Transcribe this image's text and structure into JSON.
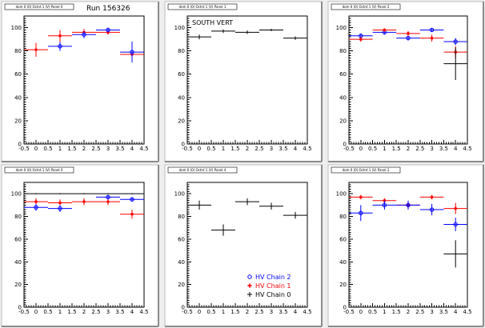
{
  "run_label": "Run 156326",
  "colors": {
    "chain2": "#0000ff",
    "chain1": "#ff0000",
    "chain0": "#000000"
  },
  "chart_data": [
    {
      "type": "scatter",
      "title": "dom 0 (0) Octnt 1 (V) Panel 0",
      "xlim": [
        -0.5,
        4.5
      ],
      "ylim": [
        0,
        110
      ],
      "xticks": [
        "-0.5",
        "0",
        "0.5",
        "1",
        "1.5",
        "2",
        "2.5",
        "3",
        "3.5",
        "4",
        "4.5"
      ],
      "yticks": [
        0,
        20,
        40,
        60,
        80,
        100
      ],
      "annotation": "",
      "series": [
        {
          "key": "chain1",
          "points": [
            {
              "x": 0,
              "y": 81,
              "ey": 6
            },
            {
              "x": 1,
              "y": 93,
              "ey": 5
            },
            {
              "x": 2,
              "y": 96,
              "ey": 3
            },
            {
              "x": 3,
              "y": 96,
              "ey": 2
            },
            {
              "x": 4,
              "y": 77,
              "ey": 5
            }
          ]
        },
        {
          "key": "chain2",
          "points": [
            {
              "x": 1,
              "y": 84,
              "ey": 4
            },
            {
              "x": 2,
              "y": 94,
              "ey": 3
            },
            {
              "x": 3,
              "y": 98,
              "ey": 2
            },
            {
              "x": 4,
              "y": 79,
              "ey": 9
            }
          ]
        }
      ]
    },
    {
      "type": "scatter",
      "title": "dom 0 (0) Octnt 1 (V) Panel 1",
      "xlim": [
        -0.5,
        4.5
      ],
      "ylim": [
        0,
        110
      ],
      "xticks": [
        "-0.5",
        "0",
        "0.5",
        "1",
        "1.5",
        "2",
        "2.5",
        "3",
        "3.5",
        "4",
        "4.5"
      ],
      "yticks": [
        0,
        20,
        40,
        60,
        80,
        100
      ],
      "annotation": "SOUTH VERT",
      "series": [
        {
          "key": "chain0",
          "points": [
            {
              "x": 0,
              "y": 92,
              "ey": 2
            },
            {
              "x": 1,
              "y": 97,
              "ey": 1.5
            },
            {
              "x": 2,
              "y": 96,
              "ey": 1.5
            },
            {
              "x": 3,
              "y": 98,
              "ey": 1
            },
            {
              "x": 4,
              "y": 91,
              "ey": 1.5
            }
          ]
        }
      ]
    },
    {
      "type": "scatter",
      "title": "dom 0 (0) Octnt 1 (V) Panel 2",
      "xlim": [
        -0.5,
        4.5
      ],
      "ylim": [
        0,
        110
      ],
      "xticks": [
        "-0.5",
        "0",
        "0.5",
        "1",
        "1.5",
        "2",
        "2.5",
        "3",
        "3.5",
        "4",
        "4.5"
      ],
      "yticks": [
        0,
        20,
        40,
        60,
        80,
        100
      ],
      "annotation": "",
      "series": [
        {
          "key": "chain2",
          "points": [
            {
              "x": 0,
              "y": 93,
              "ey": 2
            },
            {
              "x": 1,
              "y": 96,
              "ey": 2
            },
            {
              "x": 2,
              "y": 91,
              "ey": 2
            },
            {
              "x": 3,
              "y": 98,
              "ey": 1.5
            },
            {
              "x": 4,
              "y": 88,
              "ey": 3
            }
          ]
        },
        {
          "key": "chain1",
          "points": [
            {
              "x": 0,
              "y": 90,
              "ey": 2
            },
            {
              "x": 1,
              "y": 98,
              "ey": 1.5
            },
            {
              "x": 2,
              "y": 95,
              "ey": 2
            },
            {
              "x": 3,
              "y": 91,
              "ey": 3
            },
            {
              "x": 4,
              "y": 79,
              "ey": 5
            }
          ]
        },
        {
          "key": "chain0",
          "points": [
            {
              "x": 4,
              "y": 69,
              "ey": 14
            }
          ]
        }
      ]
    },
    {
      "type": "scatter",
      "title": "dom 0 (0) Octnt 1 (V) Panel 0",
      "xlim": [
        -0.5,
        4.5
      ],
      "ylim": [
        0,
        110
      ],
      "xticks": [
        "-0.5",
        "0",
        "0.5",
        "1",
        "1.5",
        "2",
        "2.5",
        "3",
        "3.5",
        "4",
        "4.5"
      ],
      "yticks": [
        0,
        20,
        40,
        60,
        80,
        100
      ],
      "annotation": "",
      "series": [
        {
          "key": "chain0",
          "points": [
            {
              "x": 0,
              "y": 100,
              "ey": 0.5
            },
            {
              "x": 1,
              "y": 100,
              "ey": 0.5
            },
            {
              "x": 2,
              "y": 100,
              "ey": 0.5
            },
            {
              "x": 3,
              "y": 100,
              "ey": 0.5
            },
            {
              "x": 4,
              "y": 100,
              "ey": 0.5
            }
          ]
        },
        {
          "key": "chain1",
          "points": [
            {
              "x": 0,
              "y": 93,
              "ey": 3
            },
            {
              "x": 1,
              "y": 92,
              "ey": 3
            },
            {
              "x": 2,
              "y": 93,
              "ey": 3
            },
            {
              "x": 3,
              "y": 93,
              "ey": 3
            },
            {
              "x": 4,
              "y": 82,
              "ey": 4
            }
          ]
        },
        {
          "key": "chain2",
          "points": [
            {
              "x": 0,
              "y": 88,
              "ey": 3
            },
            {
              "x": 1,
              "y": 87,
              "ey": 3
            },
            {
              "x": 3,
              "y": 97,
              "ey": 2
            },
            {
              "x": 4,
              "y": 95,
              "ey": 2
            }
          ]
        }
      ]
    },
    {
      "type": "scatter",
      "title": "dom 0 (0) Octnt 1 (V) Panel 4",
      "xlim": [
        -0.5,
        4.5
      ],
      "ylim": [
        0,
        110
      ],
      "xticks": [
        "-0.5",
        "0",
        "0.5",
        "1",
        "1.5",
        "2",
        "2.5",
        "3",
        "3.5",
        "4",
        "4.5"
      ],
      "yticks": [
        0,
        20,
        40,
        60,
        80,
        100
      ],
      "annotation": "",
      "legend": {
        "placement": "bottom-right",
        "entries": [
          {
            "key": "chain2",
            "label": "HV Chain 2",
            "marker": "circle"
          },
          {
            "key": "chain1",
            "label": "HV Chain 1",
            "marker": "star"
          },
          {
            "key": "chain0",
            "label": "HV Chain 0",
            "marker": "plus"
          }
        ]
      },
      "series": [
        {
          "key": "chain0",
          "points": [
            {
              "x": 0,
              "y": 90,
              "ey": 4
            },
            {
              "x": 1,
              "y": 68,
              "ey": 5
            },
            {
              "x": 2,
              "y": 93,
              "ey": 3
            },
            {
              "x": 3,
              "y": 89,
              "ey": 3
            },
            {
              "x": 4,
              "y": 81,
              "ey": 3
            }
          ]
        }
      ]
    },
    {
      "type": "scatter",
      "title": "dom 0 (0) Octnt 1 (V) Panel 2",
      "xlim": [
        -0.5,
        4.5
      ],
      "ylim": [
        0,
        110
      ],
      "xticks": [
        "-0.5",
        "0",
        "0.5",
        "1",
        "1.5",
        "2",
        "2.5",
        "3",
        "3.5",
        "4",
        "4.5"
      ],
      "yticks": [
        0,
        20,
        40,
        60,
        80,
        100
      ],
      "annotation": "",
      "series": [
        {
          "key": "chain1",
          "points": [
            {
              "x": 0,
              "y": 97,
              "ey": 2
            },
            {
              "x": 1,
              "y": 94,
              "ey": 2
            },
            {
              "x": 2,
              "y": 90,
              "ey": 2
            },
            {
              "x": 3,
              "y": 97,
              "ey": 2
            },
            {
              "x": 4,
              "y": 87,
              "ey": 5
            }
          ]
        },
        {
          "key": "chain2",
          "points": [
            {
              "x": 0,
              "y": 83,
              "ey": 7
            },
            {
              "x": 1,
              "y": 90,
              "ey": 4
            },
            {
              "x": 2,
              "y": 90,
              "ey": 4
            },
            {
              "x": 3,
              "y": 86,
              "ey": 5
            },
            {
              "x": 4,
              "y": 73,
              "ey": 6
            }
          ]
        },
        {
          "key": "chain0",
          "points": [
            {
              "x": 4,
              "y": 47,
              "ey": 12
            }
          ]
        }
      ]
    }
  ]
}
